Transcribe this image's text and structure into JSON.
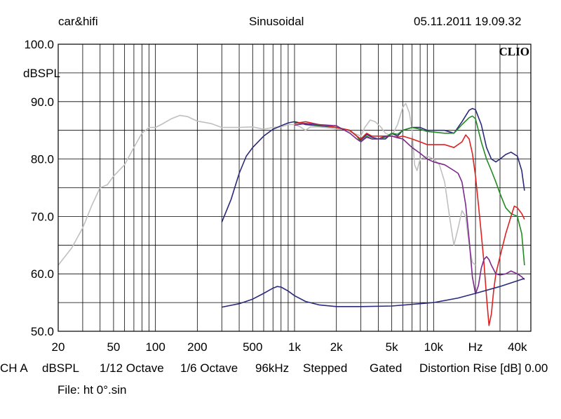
{
  "header": {
    "left": "car&hifi",
    "center": "Sinusoidal",
    "right": "05.11.2011 19.09.32"
  },
  "logo": "CLIO",
  "footer": {
    "items": [
      "CH A",
      "dBSPL",
      "1/12 Octave",
      "1/6 Octave",
      "96kHz",
      "Stepped",
      "Gated",
      "Distortion Rise [dB] 0.00"
    ],
    "file": "File: ht 0°.sin"
  },
  "chart_data": {
    "type": "line",
    "xscale": "log",
    "xlim": [
      20,
      50000
    ],
    "ylim": [
      50,
      100
    ],
    "ylabel": "dBSPL",
    "xlabel": "Hz",
    "yticks": [
      "100.0",
      "90.0",
      "80.0",
      "70.0",
      "60.0",
      "50.0"
    ],
    "xticks": [
      {
        "f": 20,
        "label": "20"
      },
      {
        "f": 50,
        "label": "50"
      },
      {
        "f": 100,
        "label": "100"
      },
      {
        "f": 200,
        "label": "200"
      },
      {
        "f": 500,
        "label": "500"
      },
      {
        "f": 1000,
        "label": "1k"
      },
      {
        "f": 2000,
        "label": "2k"
      },
      {
        "f": 5000,
        "label": "5k"
      },
      {
        "f": 10000,
        "label": "10k"
      },
      {
        "f": 40000,
        "label": "40k"
      }
    ],
    "xunit_at": 20000,
    "grid": true,
    "series": [
      {
        "color": "#c0c0c0",
        "points": [
          [
            20,
            61.5
          ],
          [
            25,
            64.5
          ],
          [
            30,
            68
          ],
          [
            35,
            72
          ],
          [
            40,
            75
          ],
          [
            45,
            75.5
          ],
          [
            50,
            77
          ],
          [
            60,
            79
          ],
          [
            70,
            82
          ],
          [
            80,
            84.5
          ],
          [
            90,
            85.5
          ],
          [
            100,
            85.5
          ],
          [
            110,
            86
          ],
          [
            130,
            87
          ],
          [
            150,
            87.6
          ],
          [
            170,
            87.4
          ],
          [
            200,
            86.6
          ],
          [
            250,
            86.2
          ],
          [
            300,
            85.5
          ],
          [
            400,
            85.5
          ],
          [
            500,
            85.6
          ],
          [
            600,
            85.2
          ],
          [
            700,
            85.5
          ],
          [
            800,
            85.6
          ],
          [
            900,
            86
          ],
          [
            1000,
            86
          ],
          [
            1100,
            85.6
          ],
          [
            1200,
            85
          ],
          [
            1300,
            85.6
          ],
          [
            1500,
            85.6
          ],
          [
            1800,
            85.4
          ],
          [
            2000,
            85.2
          ],
          [
            2300,
            85.2
          ],
          [
            2600,
            84.6
          ],
          [
            3000,
            84
          ],
          [
            3200,
            85.5
          ],
          [
            3500,
            86.8
          ],
          [
            3800,
            86.5
          ],
          [
            4200,
            85.5
          ],
          [
            4500,
            84.5
          ],
          [
            5000,
            84
          ],
          [
            5500,
            86
          ],
          [
            6000,
            89
          ],
          [
            6300,
            89.7
          ],
          [
            6700,
            88
          ],
          [
            7000,
            85
          ],
          [
            7300,
            79
          ],
          [
            7600,
            78
          ],
          [
            8000,
            80
          ],
          [
            9000,
            80.5
          ],
          [
            10000,
            80
          ],
          [
            11000,
            79
          ],
          [
            12000,
            76
          ],
          [
            13000,
            70
          ],
          [
            14000,
            65
          ],
          [
            15000,
            68
          ],
          [
            16000,
            71
          ],
          [
            17000,
            70
          ],
          [
            18000,
            65
          ],
          [
            19000,
            62
          ],
          [
            20000,
            61.5
          ]
        ]
      },
      {
        "color": "#2a2a7a",
        "points": [
          [
            300,
            69
          ],
          [
            350,
            73
          ],
          [
            400,
            77.5
          ],
          [
            450,
            80.5
          ],
          [
            500,
            82
          ],
          [
            600,
            84
          ],
          [
            700,
            85.2
          ],
          [
            800,
            85.8
          ],
          [
            900,
            86.3
          ],
          [
            1000,
            86.5
          ],
          [
            1100,
            86.3
          ],
          [
            1200,
            86
          ],
          [
            1500,
            85.8
          ],
          [
            2000,
            85.5
          ],
          [
            2500,
            85
          ],
          [
            2800,
            84
          ],
          [
            3000,
            83.3
          ],
          [
            3300,
            84.3
          ],
          [
            3600,
            83.8
          ],
          [
            4000,
            83.5
          ],
          [
            4500,
            83.5
          ],
          [
            5000,
            84.5
          ],
          [
            5500,
            84
          ],
          [
            6000,
            85
          ],
          [
            7000,
            85.5
          ],
          [
            8000,
            85.5
          ],
          [
            9000,
            85
          ],
          [
            10000,
            85
          ],
          [
            12000,
            85
          ],
          [
            14000,
            84.5
          ],
          [
            16000,
            86.5
          ],
          [
            18000,
            88.5
          ],
          [
            19000,
            88.8
          ],
          [
            20000,
            88.6
          ],
          [
            22000,
            86
          ],
          [
            24000,
            82
          ],
          [
            26000,
            80
          ],
          [
            28000,
            79.5
          ],
          [
            30000,
            80
          ],
          [
            33000,
            80.8
          ],
          [
            36000,
            81.2
          ],
          [
            40000,
            80.5
          ],
          [
            43000,
            78
          ],
          [
            45000,
            74.5
          ]
        ]
      },
      {
        "color": "#228b22",
        "points": [
          [
            1000,
            86.3
          ],
          [
            1200,
            86.2
          ],
          [
            1500,
            85.9
          ],
          [
            2000,
            85.5
          ],
          [
            2500,
            85
          ],
          [
            2800,
            84
          ],
          [
            3000,
            83
          ],
          [
            3300,
            84
          ],
          [
            3600,
            83.5
          ],
          [
            4000,
            83.5
          ],
          [
            4500,
            83.8
          ],
          [
            5000,
            84.5
          ],
          [
            5500,
            84.3
          ],
          [
            6000,
            85
          ],
          [
            7000,
            85.5
          ],
          [
            8000,
            85.2
          ],
          [
            9000,
            84.8
          ],
          [
            10000,
            84.7
          ],
          [
            12000,
            84.5
          ],
          [
            14000,
            84.5
          ],
          [
            16000,
            86
          ],
          [
            18000,
            87.2
          ],
          [
            19000,
            87.5
          ],
          [
            20000,
            87
          ],
          [
            22000,
            83
          ],
          [
            24000,
            80
          ],
          [
            26000,
            78
          ],
          [
            28000,
            76
          ],
          [
            30000,
            74
          ],
          [
            33000,
            71.5
          ],
          [
            36000,
            70.5
          ],
          [
            40000,
            70
          ],
          [
            43000,
            67
          ],
          [
            45000,
            61.5
          ]
        ]
      },
      {
        "color": "#dd2222",
        "points": [
          [
            1000,
            86.2
          ],
          [
            1200,
            86.5
          ],
          [
            1500,
            86
          ],
          [
            2000,
            85.5
          ],
          [
            2500,
            85
          ],
          [
            2800,
            84
          ],
          [
            3000,
            83.5
          ],
          [
            3300,
            84.5
          ],
          [
            3600,
            84
          ],
          [
            4000,
            84
          ],
          [
            4500,
            84
          ],
          [
            5000,
            84
          ],
          [
            5500,
            83.8
          ],
          [
            6000,
            84
          ],
          [
            7000,
            83.5
          ],
          [
            8000,
            83
          ],
          [
            9000,
            82.5
          ],
          [
            10000,
            82.5
          ],
          [
            12000,
            82.5
          ],
          [
            14000,
            82
          ],
          [
            16000,
            83
          ],
          [
            17000,
            84.2
          ],
          [
            18000,
            83.5
          ],
          [
            19000,
            81
          ],
          [
            20000,
            77
          ],
          [
            21000,
            72
          ],
          [
            22000,
            67
          ],
          [
            23000,
            62
          ],
          [
            24000,
            56
          ],
          [
            25000,
            51
          ],
          [
            26000,
            53
          ],
          [
            27000,
            57
          ],
          [
            28000,
            60
          ],
          [
            30000,
            63
          ],
          [
            33000,
            67
          ],
          [
            36000,
            70
          ],
          [
            38000,
            71.8
          ],
          [
            40000,
            71.5
          ],
          [
            43000,
            70.5
          ],
          [
            45000,
            69.5
          ]
        ]
      },
      {
        "color": "#7a2a8a",
        "points": [
          [
            1000,
            85.9
          ],
          [
            1200,
            86.2
          ],
          [
            1500,
            86
          ],
          [
            2000,
            85.8
          ],
          [
            2500,
            84.5
          ],
          [
            2800,
            83.5
          ],
          [
            3000,
            83
          ],
          [
            3300,
            83.8
          ],
          [
            3600,
            83.5
          ],
          [
            4000,
            83.5
          ],
          [
            4500,
            84
          ],
          [
            5000,
            84
          ],
          [
            5500,
            83.7
          ],
          [
            6000,
            83.5
          ],
          [
            7000,
            82
          ],
          [
            8000,
            81
          ],
          [
            9000,
            80
          ],
          [
            10000,
            79.5
          ],
          [
            12000,
            79
          ],
          [
            14000,
            78
          ],
          [
            15000,
            77.5
          ],
          [
            16000,
            76
          ],
          [
            17000,
            72
          ],
          [
            18000,
            66
          ],
          [
            19000,
            59.5
          ],
          [
            20000,
            56.5
          ],
          [
            21000,
            58
          ],
          [
            22000,
            61
          ],
          [
            23000,
            62.5
          ],
          [
            24000,
            63
          ],
          [
            25000,
            62.5
          ],
          [
            26000,
            61.5
          ],
          [
            28000,
            60
          ],
          [
            30000,
            59.8
          ],
          [
            33000,
            60
          ],
          [
            36000,
            60.5
          ],
          [
            40000,
            60
          ],
          [
            43000,
            59.5
          ],
          [
            45000,
            59
          ]
        ]
      },
      {
        "color": "#2a2a7a",
        "points": [
          [
            300,
            54.2
          ],
          [
            400,
            54.8
          ],
          [
            500,
            55.6
          ],
          [
            600,
            56.6
          ],
          [
            700,
            57.5
          ],
          [
            750,
            57.8
          ],
          [
            800,
            57.7
          ],
          [
            900,
            57
          ],
          [
            1000,
            56.2
          ],
          [
            1200,
            55.2
          ],
          [
            1500,
            54.6
          ],
          [
            2000,
            54.3
          ],
          [
            3000,
            54.3
          ],
          [
            5000,
            54.4
          ],
          [
            8000,
            54.8
          ],
          [
            10000,
            55
          ],
          [
            15000,
            55.8
          ],
          [
            20000,
            56.6
          ],
          [
            30000,
            57.8
          ],
          [
            45000,
            59.2
          ]
        ]
      }
    ]
  }
}
